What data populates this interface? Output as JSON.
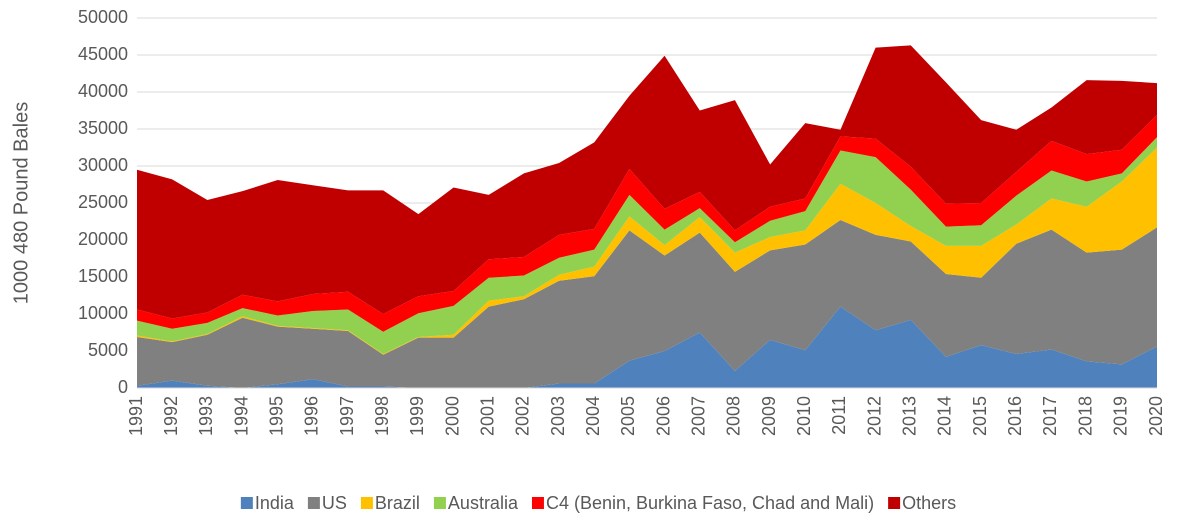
{
  "chart_data": {
    "type": "stacked_area",
    "ylabel": "1000 480 Pound Bales",
    "categories": [
      "1991",
      "1992",
      "1993",
      "1994",
      "1995",
      "1996",
      "1997",
      "1998",
      "1999",
      "2000",
      "2001",
      "2002",
      "2003",
      "2004",
      "2005",
      "2006",
      "2007",
      "2008",
      "2009",
      "2010",
      "2011",
      "2012",
      "2013",
      "2014",
      "2015",
      "2016",
      "2017",
      "2018",
      "2019",
      "2020"
    ],
    "series": [
      {
        "name": "India",
        "color": "#4f81bd",
        "values": [
          300,
          1000,
          300,
          0,
          500,
          1200,
          200,
          200,
          0,
          0,
          0,
          0,
          600,
          600,
          3700,
          5000,
          7500,
          2300,
          6500,
          5100,
          11000,
          7800,
          9200,
          4200,
          5800,
          4600,
          5200,
          3600,
          3200,
          5600
        ]
      },
      {
        "name": "US",
        "color": "#808080",
        "values": [
          6600,
          5200,
          6900,
          9500,
          7800,
          6800,
          7500,
          4300,
          6800,
          6800,
          11000,
          12000,
          13900,
          14500,
          17600,
          12900,
          13500,
          13400,
          12100,
          14300,
          11700,
          12900,
          10600,
          11200,
          9100,
          14900,
          16200,
          14700,
          15500,
          16100
        ]
      },
      {
        "name": "Brazil",
        "color": "#ffc000",
        "values": [
          200,
          100,
          100,
          200,
          100,
          100,
          100,
          100,
          100,
          400,
          800,
          400,
          800,
          1300,
          1900,
          1400,
          2100,
          2600,
          1800,
          1900,
          4900,
          4300,
          2100,
          3800,
          4300,
          2600,
          4200,
          6200,
          9200,
          10800
        ]
      },
      {
        "name": "Australia",
        "color": "#92d050",
        "values": [
          2000,
          1700,
          1500,
          1100,
          1400,
          2300,
          2800,
          3000,
          3200,
          3900,
          3100,
          2800,
          2300,
          2300,
          2900,
          2100,
          1200,
          1400,
          2200,
          2600,
          4500,
          6200,
          4900,
          2600,
          2800,
          3900,
          3800,
          3400,
          1100,
          1400
        ]
      },
      {
        "name": "C4 (Benin, Burkina Faso, Chad and Mali)",
        "color": "#ff0000",
        "values": [
          1500,
          1400,
          1400,
          1800,
          1900,
          2300,
          2400,
          2400,
          2300,
          2000,
          2500,
          2500,
          3100,
          2800,
          3500,
          2800,
          2200,
          1600,
          1900,
          1700,
          1900,
          2500,
          3100,
          3100,
          3000,
          3200,
          4000,
          3700,
          3200,
          3000
        ]
      },
      {
        "name": "Others",
        "color": "#c00000",
        "values": [
          18900,
          18800,
          15200,
          14000,
          16400,
          14700,
          13700,
          16700,
          11100,
          14000,
          8700,
          11300,
          9700,
          11700,
          9900,
          20700,
          11000,
          17600,
          5700,
          10200,
          900,
          12300,
          16400,
          16400,
          11200,
          5700,
          4500,
          10000,
          9300,
          4300
        ]
      }
    ],
    "ylim": [
      0,
      50000
    ],
    "yticks": [
      0,
      5000,
      10000,
      15000,
      20000,
      25000,
      30000,
      35000,
      40000,
      45000,
      50000
    ],
    "grid": true,
    "legend": "bottom"
  }
}
